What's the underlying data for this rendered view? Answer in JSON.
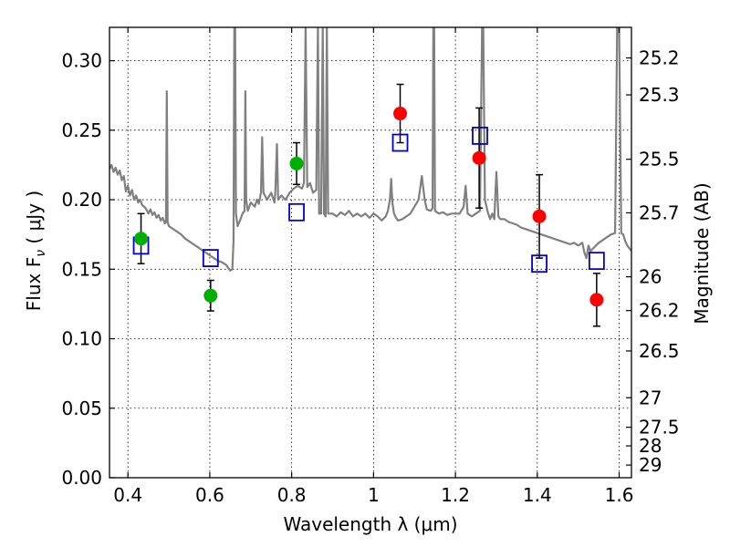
{
  "chart_data": {
    "type": "scatter",
    "xlabel": "Wavelength  λ (μm)",
    "ylabel": "Flux  F",
    "ylabel_sub": "ν",
    "ylabel_unit": "  ( μJy )",
    "y2label": "Magnitude (AB)",
    "xlim": [
      0.355,
      1.63
    ],
    "ylim": [
      0.0,
      0.324
    ],
    "grid": true,
    "x_ticks": [
      0.4,
      0.6,
      0.8,
      1.0,
      1.2,
      1.4,
      1.6
    ],
    "x_tick_labels": [
      "0.4",
      "0.6",
      "0.8",
      "1",
      "1.2",
      "1.4",
      "1.6"
    ],
    "y_ticks": [
      0.0,
      0.05,
      0.1,
      0.15,
      0.2,
      0.25,
      0.3
    ],
    "y_tick_labels": [
      "0.00",
      "0.05",
      "0.10",
      "0.15",
      "0.20",
      "0.25",
      "0.30"
    ],
    "y2_ticks": [
      {
        "mag": 25.2,
        "label": "25.2"
      },
      {
        "mag": 25.3,
        "label": "25.3"
      },
      {
        "mag": 25.5,
        "label": "25.5"
      },
      {
        "mag": 25.7,
        "label": "25.7"
      },
      {
        "mag": 26.0,
        "label": "26"
      },
      {
        "mag": 26.2,
        "label": "26.2"
      },
      {
        "mag": 26.5,
        "label": "26.5"
      },
      {
        "mag": 27.0,
        "label": "27"
      },
      {
        "mag": 27.5,
        "label": "27.5"
      },
      {
        "mag": 28.0,
        "label": "28"
      },
      {
        "mag": 29.0,
        "label": "29"
      }
    ],
    "model_spectrum": {
      "color": "#808080",
      "points": [
        [
          0.355,
          0.222
        ],
        [
          0.36,
          0.225
        ],
        [
          0.365,
          0.22
        ],
        [
          0.37,
          0.223
        ],
        [
          0.375,
          0.218
        ],
        [
          0.38,
          0.221
        ],
        [
          0.385,
          0.214
        ],
        [
          0.39,
          0.217
        ],
        [
          0.395,
          0.206
        ],
        [
          0.4,
          0.21
        ],
        [
          0.405,
          0.203
        ],
        [
          0.41,
          0.207
        ],
        [
          0.415,
          0.2
        ],
        [
          0.42,
          0.203
        ],
        [
          0.425,
          0.198
        ],
        [
          0.43,
          0.2
        ],
        [
          0.435,
          0.196
        ],
        [
          0.44,
          0.195
        ],
        [
          0.445,
          0.193
        ],
        [
          0.45,
          0.19
        ],
        [
          0.455,
          0.193
        ],
        [
          0.46,
          0.189
        ],
        [
          0.465,
          0.191
        ],
        [
          0.47,
          0.187
        ],
        [
          0.475,
          0.189
        ],
        [
          0.48,
          0.185
        ],
        [
          0.485,
          0.187
        ],
        [
          0.49,
          0.183
        ],
        [
          0.493,
          0.184
        ],
        [
          0.495,
          0.278
        ],
        [
          0.497,
          0.184
        ],
        [
          0.5,
          0.181
        ],
        [
          0.51,
          0.179
        ],
        [
          0.52,
          0.177
        ],
        [
          0.53,
          0.175
        ],
        [
          0.54,
          0.172
        ],
        [
          0.55,
          0.17
        ],
        [
          0.56,
          0.168
        ],
        [
          0.57,
          0.166
        ],
        [
          0.58,
          0.164
        ],
        [
          0.59,
          0.162
        ],
        [
          0.6,
          0.16
        ],
        [
          0.61,
          0.158
        ],
        [
          0.62,
          0.156
        ],
        [
          0.63,
          0.155
        ],
        [
          0.64,
          0.153
        ],
        [
          0.645,
          0.151
        ],
        [
          0.65,
          0.149
        ],
        [
          0.655,
          0.15
        ],
        [
          0.658,
          0.17
        ],
        [
          0.66,
          0.324
        ],
        [
          0.662,
          0.324
        ],
        [
          0.664,
          0.19
        ],
        [
          0.668,
          0.181
        ],
        [
          0.675,
          0.186
        ],
        [
          0.68,
          0.19
        ],
        [
          0.685,
          0.192
        ],
        [
          0.687,
          0.278
        ],
        [
          0.689,
          0.2
        ],
        [
          0.693,
          0.192
        ],
        [
          0.7,
          0.198
        ],
        [
          0.71,
          0.195
        ],
        [
          0.715,
          0.2
        ],
        [
          0.72,
          0.197
        ],
        [
          0.725,
          0.205
        ],
        [
          0.728,
          0.245
        ],
        [
          0.731,
          0.205
        ],
        [
          0.74,
          0.2
        ],
        [
          0.75,
          0.205
        ],
        [
          0.758,
          0.198
        ],
        [
          0.76,
          0.205
        ],
        [
          0.764,
          0.24
        ],
        [
          0.767,
          0.2
        ],
        [
          0.775,
          0.203
        ],
        [
          0.785,
          0.2
        ],
        [
          0.795,
          0.205
        ],
        [
          0.805,
          0.208
        ],
        [
          0.815,
          0.21
        ],
        [
          0.825,
          0.208
        ],
        [
          0.83,
          0.212
        ],
        [
          0.834,
          0.324
        ],
        [
          0.838,
          0.209
        ],
        [
          0.845,
          0.212
        ],
        [
          0.852,
          0.205
        ],
        [
          0.86,
          0.207
        ],
        [
          0.864,
          0.324
        ],
        [
          0.867,
          0.19
        ],
        [
          0.872,
          0.19
        ],
        [
          0.876,
          0.324
        ],
        [
          0.879,
          0.19
        ],
        [
          0.883,
          0.188
        ],
        [
          0.886,
          0.324
        ],
        [
          0.889,
          0.19
        ],
        [
          0.9,
          0.19
        ],
        [
          0.91,
          0.188
        ],
        [
          0.92,
          0.191
        ],
        [
          0.93,
          0.189
        ],
        [
          0.94,
          0.192
        ],
        [
          0.95,
          0.188
        ],
        [
          0.96,
          0.19
        ],
        [
          0.97,
          0.188
        ],
        [
          0.98,
          0.19
        ],
        [
          0.99,
          0.187
        ],
        [
          1.0,
          0.19
        ],
        [
          1.01,
          0.188
        ],
        [
          1.02,
          0.185
        ],
        [
          1.03,
          0.188
        ],
        [
          1.035,
          0.192
        ],
        [
          1.04,
          0.2
        ],
        [
          1.043,
          0.215
        ],
        [
          1.046,
          0.198
        ],
        [
          1.05,
          0.19
        ],
        [
          1.055,
          0.187
        ],
        [
          1.06,
          0.185
        ],
        [
          1.07,
          0.186
        ],
        [
          1.08,
          0.188
        ],
        [
          1.09,
          0.19
        ],
        [
          1.1,
          0.195
        ],
        [
          1.11,
          0.2
        ],
        [
          1.118,
          0.217
        ],
        [
          1.125,
          0.2
        ],
        [
          1.13,
          0.193
        ],
        [
          1.14,
          0.192
        ],
        [
          1.144,
          0.194
        ],
        [
          1.146,
          0.324
        ],
        [
          1.148,
          0.324
        ],
        [
          1.15,
          0.192
        ],
        [
          1.16,
          0.19
        ],
        [
          1.17,
          0.191
        ],
        [
          1.18,
          0.189
        ],
        [
          1.19,
          0.19
        ],
        [
          1.2,
          0.19
        ],
        [
          1.21,
          0.19
        ],
        [
          1.22,
          0.195
        ],
        [
          1.225,
          0.21
        ],
        [
          1.23,
          0.19
        ],
        [
          1.24,
          0.188
        ],
        [
          1.25,
          0.19
        ],
        [
          1.26,
          0.192
        ],
        [
          1.265,
          0.324
        ],
        [
          1.268,
          0.324
        ],
        [
          1.272,
          0.2
        ],
        [
          1.28,
          0.19
        ],
        [
          1.285,
          0.186
        ],
        [
          1.29,
          0.19
        ],
        [
          1.295,
          0.186
        ],
        [
          1.3,
          0.22
        ],
        [
          1.305,
          0.188
        ],
        [
          1.31,
          0.186
        ],
        [
          1.32,
          0.186
        ],
        [
          1.33,
          0.184
        ],
        [
          1.34,
          0.183
        ],
        [
          1.35,
          0.182
        ],
        [
          1.36,
          0.18
        ],
        [
          1.37,
          0.179
        ],
        [
          1.38,
          0.178
        ],
        [
          1.39,
          0.177
        ],
        [
          1.4,
          0.176
        ],
        [
          1.41,
          0.175
        ],
        [
          1.42,
          0.174
        ],
        [
          1.43,
          0.173
        ],
        [
          1.44,
          0.172
        ],
        [
          1.45,
          0.171
        ],
        [
          1.46,
          0.17
        ],
        [
          1.47,
          0.169
        ],
        [
          1.48,
          0.168
        ],
        [
          1.49,
          0.169
        ],
        [
          1.5,
          0.167
        ],
        [
          1.51,
          0.169
        ],
        [
          1.515,
          0.162
        ],
        [
          1.52,
          0.158
        ],
        [
          1.525,
          0.167
        ],
        [
          1.53,
          0.163
        ],
        [
          1.54,
          0.166
        ],
        [
          1.55,
          0.169
        ],
        [
          1.56,
          0.171
        ],
        [
          1.57,
          0.173
        ],
        [
          1.58,
          0.175
        ],
        [
          1.59,
          0.176
        ],
        [
          1.595,
          0.324
        ],
        [
          1.6,
          0.324
        ],
        [
          1.605,
          0.176
        ],
        [
          1.61,
          0.175
        ],
        [
          1.615,
          0.17
        ],
        [
          1.62,
          0.167
        ],
        [
          1.625,
          0.165
        ],
        [
          1.63,
          0.163
        ]
      ]
    },
    "green_points": {
      "color": "#00b000",
      "points": [
        {
          "x": 0.432,
          "y": 0.172,
          "err": 0.018
        },
        {
          "x": 0.602,
          "y": 0.131,
          "err": 0.011
        },
        {
          "x": 0.812,
          "y": 0.226,
          "err": 0.015
        }
      ]
    },
    "red_points": {
      "color": "#ff0000",
      "points": [
        {
          "x": 1.065,
          "y": 0.262,
          "err": 0.021
        },
        {
          "x": 1.258,
          "y": 0.23,
          "err": 0.036
        },
        {
          "x": 1.405,
          "y": 0.188,
          "err": 0.03
        },
        {
          "x": 1.545,
          "y": 0.128,
          "err": 0.019
        }
      ]
    },
    "model_boxes": {
      "color": "#0000cc",
      "points": [
        {
          "x": 0.432,
          "y": 0.167
        },
        {
          "x": 0.602,
          "y": 0.158
        },
        {
          "x": 0.812,
          "y": 0.191
        },
        {
          "x": 1.065,
          "y": 0.241
        },
        {
          "x": 1.26,
          "y": 0.246
        },
        {
          "x": 1.405,
          "y": 0.154
        },
        {
          "x": 1.545,
          "y": 0.156
        }
      ]
    }
  }
}
